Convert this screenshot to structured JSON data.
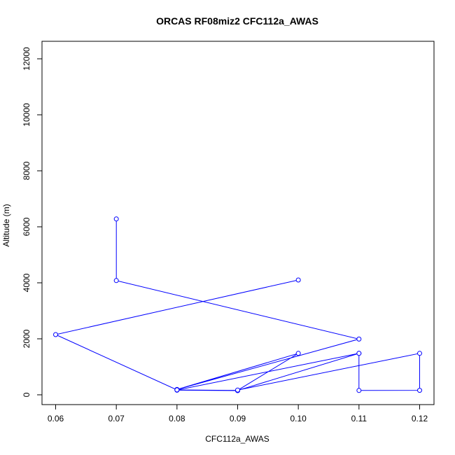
{
  "chart_data": {
    "type": "line",
    "title": "ORCAS RF08miz2 CFC112a_AWAS",
    "xlabel": "CFC112a_AWAS",
    "ylabel": "Altitude (m)",
    "xlim": [
      0.06,
      0.12
    ],
    "ylim": [
      0,
      12000
    ],
    "xticks": [
      0.06,
      0.07,
      0.08,
      0.09,
      0.1,
      0.11,
      0.12
    ],
    "xtick_labels": [
      "0.06",
      "0.07",
      "0.08",
      "0.09",
      "0.10",
      "0.11",
      "0.12"
    ],
    "yticks": [
      0,
      2000,
      4000,
      6000,
      8000,
      10000,
      12000
    ],
    "ytick_labels": [
      "0",
      "2000",
      "4000",
      "6000",
      "8000",
      "10000",
      "12000"
    ],
    "grid": false,
    "color": "#0000ff",
    "series": [
      {
        "points": [
          {
            "x": 0.07,
            "y": 6280
          },
          {
            "x": 0.07,
            "y": 4080
          },
          {
            "x": 0.11,
            "y": 1990
          },
          {
            "x": 0.08,
            "y": 190
          },
          {
            "x": 0.1,
            "y": 1480
          },
          {
            "x": 0.09,
            "y": 160
          },
          {
            "x": 0.08,
            "y": 165
          },
          {
            "x": 0.09,
            "y": 150
          },
          {
            "x": 0.08,
            "y": 170
          },
          {
            "x": 0.11,
            "y": 1480
          },
          {
            "x": 0.09,
            "y": 155
          },
          {
            "x": 0.08,
            "y": 175
          },
          {
            "x": 0.06,
            "y": 2150
          },
          {
            "x": 0.1,
            "y": 4100
          }
        ]
      },
      {
        "points": [
          {
            "x": 0.09,
            "y": 170
          },
          {
            "x": 0.12,
            "y": 1480
          },
          {
            "x": 0.12,
            "y": 160
          },
          {
            "x": 0.11,
            "y": 155
          },
          {
            "x": 0.11,
            "y": 1480
          }
        ]
      }
    ]
  }
}
